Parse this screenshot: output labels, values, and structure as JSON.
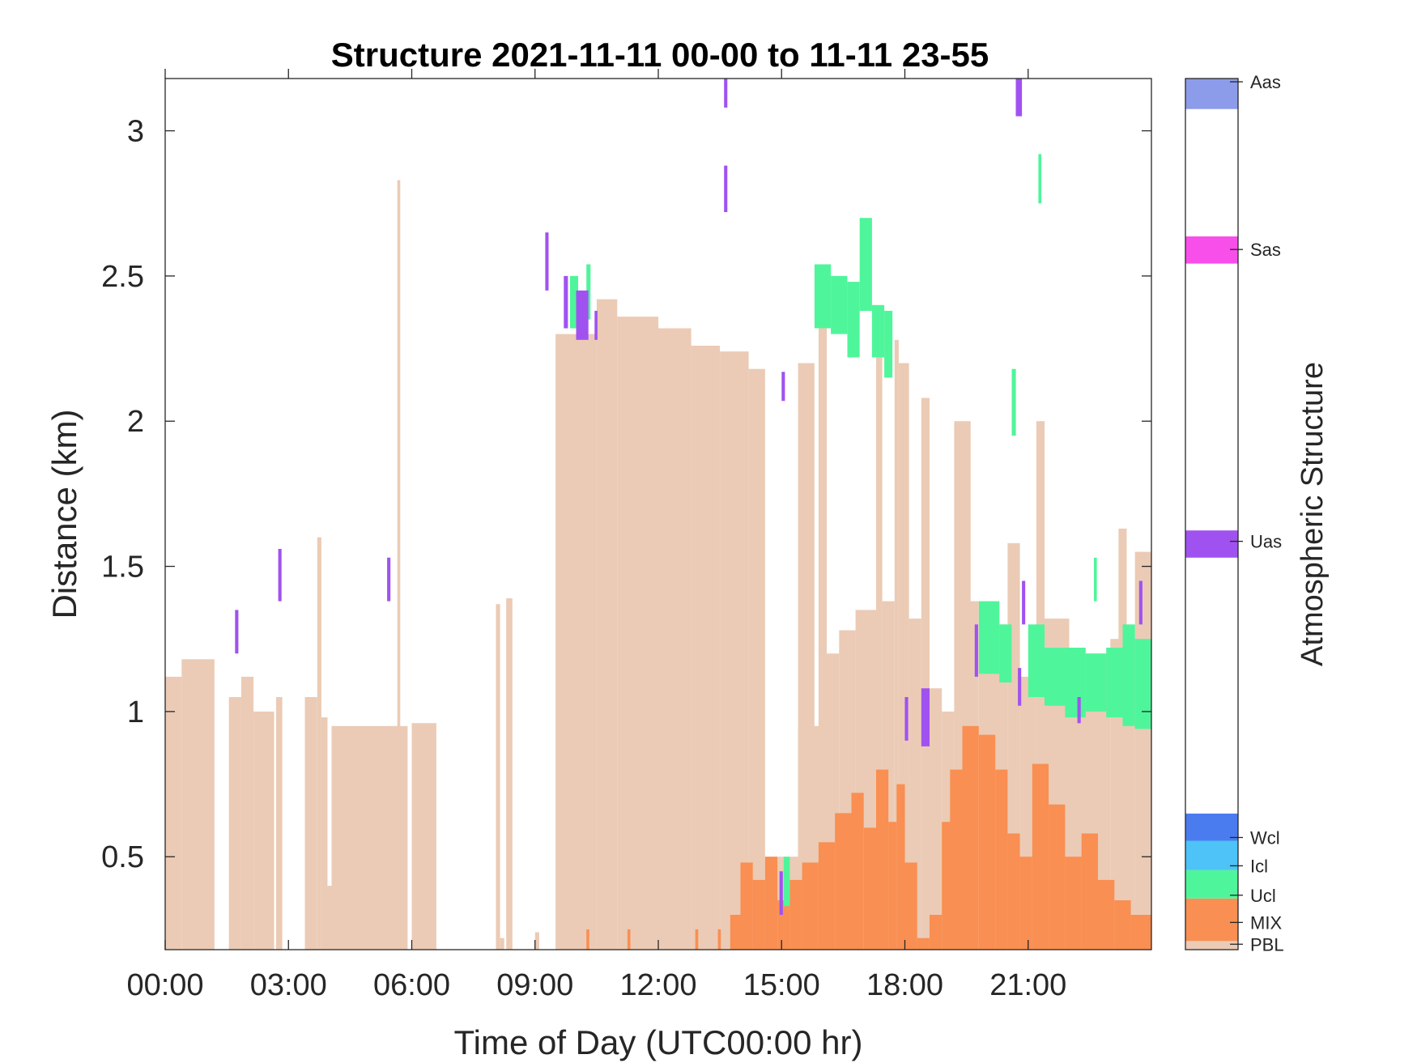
{
  "chart_data": {
    "type": "heatmap",
    "title": "Structure 2021-11-11 00-00 to 11-11 23-55",
    "xlabel": "Time of Day (UTC00:00 hr)",
    "ylabel": "Distance (km)",
    "xlim": [
      0,
      24
    ],
    "ylim": [
      0.18,
      3.18
    ],
    "xticks": [
      0,
      3,
      6,
      9,
      12,
      15,
      18,
      21
    ],
    "xtick_labels": [
      "00:00",
      "03:00",
      "06:00",
      "09:00",
      "12:00",
      "15:00",
      "18:00",
      "21:00"
    ],
    "yticks": [
      0.5,
      1,
      1.5,
      2,
      2.5,
      3
    ],
    "ytick_labels": [
      "0.5",
      "1",
      "1.5",
      "2",
      "2.5",
      "3"
    ],
    "colorbar": {
      "label": "Atmospheric Structure",
      "categories": [
        {
          "name": "PBL",
          "color": "#ebcbb5"
        },
        {
          "name": "MIX",
          "color": "#f98f52"
        },
        {
          "name": "Ucl",
          "color": "#4ff59a"
        },
        {
          "name": "Icl",
          "color": "#4dc3f7"
        },
        {
          "name": "Wcl",
          "color": "#4a7cf0"
        },
        {
          "name": "Uas",
          "color": "#a052f0"
        },
        {
          "name": "Sas",
          "color": "#f94fea"
        },
        {
          "name": "Aas",
          "color": "#8c9ceb"
        }
      ]
    },
    "grid": false,
    "series": [
      {
        "name": "PBL",
        "blocks": [
          [
            0.0,
            0.4,
            0.18,
            1.12
          ],
          [
            0.4,
            1.2,
            0.18,
            1.18
          ],
          [
            1.55,
            1.85,
            0.18,
            1.05
          ],
          [
            1.85,
            2.15,
            0.18,
            1.12
          ],
          [
            2.15,
            2.65,
            0.18,
            1.0
          ],
          [
            2.7,
            2.85,
            0.18,
            1.05
          ],
          [
            3.4,
            3.7,
            0.18,
            1.05
          ],
          [
            3.7,
            3.8,
            0.18,
            1.6
          ],
          [
            3.8,
            3.95,
            0.18,
            0.98
          ],
          [
            3.95,
            4.05,
            0.18,
            0.4
          ],
          [
            4.05,
            5.9,
            0.18,
            0.95
          ],
          [
            5.65,
            5.72,
            0.18,
            2.83
          ],
          [
            6.0,
            6.6,
            0.18,
            0.96
          ],
          [
            8.05,
            8.15,
            0.18,
            1.37
          ],
          [
            8.15,
            8.25,
            0.18,
            0.22
          ],
          [
            8.3,
            8.45,
            0.18,
            1.39
          ],
          [
            9.0,
            9.1,
            0.18,
            0.24
          ],
          [
            9.5,
            10.5,
            0.18,
            2.3
          ],
          [
            10.5,
            11.0,
            0.18,
            2.42
          ],
          [
            11.0,
            12.0,
            0.18,
            2.36
          ],
          [
            12.0,
            12.8,
            0.18,
            2.32
          ],
          [
            12.8,
            13.5,
            0.18,
            2.26
          ],
          [
            13.5,
            14.2,
            0.18,
            2.24
          ],
          [
            14.2,
            14.6,
            0.18,
            2.18
          ],
          [
            14.6,
            15.4,
            0.18,
            0.5
          ],
          [
            15.4,
            15.8,
            0.18,
            2.2
          ],
          [
            15.4,
            15.9,
            0.18,
            0.95
          ],
          [
            15.9,
            16.1,
            0.18,
            2.48
          ],
          [
            16.0,
            16.4,
            0.18,
            1.2
          ],
          [
            16.4,
            16.8,
            0.18,
            1.28
          ],
          [
            16.8,
            17.3,
            0.18,
            1.35
          ],
          [
            17.3,
            17.45,
            0.18,
            2.25
          ],
          [
            17.45,
            17.75,
            0.18,
            1.38
          ],
          [
            17.75,
            17.85,
            0.18,
            2.28
          ],
          [
            17.85,
            18.1,
            0.18,
            2.2
          ],
          [
            18.1,
            18.4,
            0.18,
            1.32
          ],
          [
            18.4,
            18.6,
            0.18,
            2.08
          ],
          [
            18.6,
            18.9,
            0.18,
            1.08
          ],
          [
            18.9,
            19.2,
            0.18,
            1.0
          ],
          [
            19.2,
            19.6,
            0.18,
            2.0
          ],
          [
            19.5,
            19.8,
            0.18,
            1.38
          ],
          [
            19.8,
            20.5,
            0.18,
            1.3
          ],
          [
            20.5,
            20.8,
            0.18,
            1.58
          ],
          [
            20.8,
            21.2,
            0.18,
            1.12
          ],
          [
            21.2,
            21.4,
            0.18,
            2.0
          ],
          [
            21.4,
            22.0,
            0.18,
            1.32
          ],
          [
            22.0,
            23.0,
            0.18,
            1.2
          ],
          [
            23.0,
            23.6,
            0.18,
            1.25
          ],
          [
            23.2,
            23.4,
            0.18,
            1.63
          ],
          [
            23.6,
            24.0,
            0.18,
            1.55
          ]
        ]
      },
      {
        "name": "MIX",
        "blocks": [
          [
            10.25,
            10.32,
            0.18,
            0.25
          ],
          [
            11.25,
            11.32,
            0.18,
            0.25
          ],
          [
            12.9,
            12.97,
            0.18,
            0.25
          ],
          [
            13.45,
            13.52,
            0.18,
            0.25
          ],
          [
            13.75,
            14.0,
            0.18,
            0.3
          ],
          [
            14.0,
            14.3,
            0.18,
            0.48
          ],
          [
            14.3,
            14.6,
            0.18,
            0.42
          ],
          [
            14.6,
            14.9,
            0.18,
            0.5
          ],
          [
            14.9,
            15.2,
            0.18,
            0.35
          ],
          [
            15.2,
            15.5,
            0.18,
            0.42
          ],
          [
            15.5,
            15.9,
            0.18,
            0.48
          ],
          [
            15.9,
            16.3,
            0.18,
            0.55
          ],
          [
            16.3,
            16.7,
            0.18,
            0.65
          ],
          [
            16.7,
            17.0,
            0.18,
            0.72
          ],
          [
            17.0,
            17.3,
            0.18,
            0.6
          ],
          [
            17.3,
            17.6,
            0.18,
            0.8
          ],
          [
            17.6,
            17.8,
            0.18,
            0.62
          ],
          [
            17.8,
            18.0,
            0.18,
            0.75
          ],
          [
            18.0,
            18.3,
            0.18,
            0.48
          ],
          [
            18.3,
            18.6,
            0.18,
            0.22
          ],
          [
            18.6,
            18.9,
            0.18,
            0.3
          ],
          [
            18.9,
            19.1,
            0.18,
            0.62
          ],
          [
            19.1,
            19.4,
            0.18,
            0.8
          ],
          [
            19.4,
            19.8,
            0.18,
            0.95
          ],
          [
            19.8,
            20.2,
            0.18,
            0.92
          ],
          [
            20.2,
            20.5,
            0.18,
            0.8
          ],
          [
            20.5,
            20.8,
            0.18,
            0.58
          ],
          [
            20.8,
            21.1,
            0.18,
            0.5
          ],
          [
            21.1,
            21.5,
            0.18,
            0.82
          ],
          [
            21.5,
            21.9,
            0.18,
            0.68
          ],
          [
            21.9,
            22.3,
            0.18,
            0.5
          ],
          [
            22.3,
            22.7,
            0.18,
            0.58
          ],
          [
            22.7,
            23.1,
            0.18,
            0.42
          ],
          [
            23.1,
            23.5,
            0.18,
            0.35
          ],
          [
            23.5,
            24.0,
            0.18,
            0.3
          ]
        ]
      },
      {
        "name": "Ucl",
        "blocks": [
          [
            9.85,
            10.05,
            2.32,
            2.5
          ],
          [
            10.25,
            10.35,
            2.35,
            2.54
          ],
          [
            15.05,
            15.2,
            0.33,
            0.5
          ],
          [
            15.8,
            16.2,
            2.32,
            2.54
          ],
          [
            16.2,
            16.6,
            2.3,
            2.5
          ],
          [
            16.6,
            16.9,
            2.22,
            2.48
          ],
          [
            16.9,
            17.2,
            2.38,
            2.7
          ],
          [
            17.2,
            17.5,
            2.22,
            2.4
          ],
          [
            17.5,
            17.7,
            2.15,
            2.38
          ],
          [
            19.8,
            20.3,
            1.13,
            1.38
          ],
          [
            20.3,
            20.6,
            1.1,
            1.3
          ],
          [
            20.6,
            20.7,
            1.95,
            2.18
          ],
          [
            21.0,
            21.4,
            1.05,
            1.3
          ],
          [
            21.4,
            21.9,
            1.02,
            1.22
          ],
          [
            21.9,
            22.4,
            0.98,
            1.22
          ],
          [
            22.4,
            22.9,
            1.0,
            1.2
          ],
          [
            22.9,
            23.3,
            0.98,
            1.22
          ],
          [
            23.3,
            23.6,
            0.95,
            1.3
          ],
          [
            23.6,
            24.0,
            0.94,
            1.25
          ],
          [
            21.25,
            21.32,
            2.75,
            2.92
          ],
          [
            22.6,
            22.67,
            1.38,
            1.53
          ]
        ]
      },
      {
        "name": "Uas",
        "blocks": [
          [
            1.7,
            1.78,
            1.2,
            1.35
          ],
          [
            2.75,
            2.83,
            1.38,
            1.56
          ],
          [
            5.4,
            5.48,
            1.38,
            1.53
          ],
          [
            9.25,
            9.33,
            2.45,
            2.65
          ],
          [
            9.7,
            9.8,
            2.32,
            2.5
          ],
          [
            10.0,
            10.3,
            2.28,
            2.45
          ],
          [
            10.45,
            10.52,
            2.28,
            2.38
          ],
          [
            13.6,
            13.68,
            3.08,
            3.18
          ],
          [
            13.6,
            13.68,
            2.72,
            2.88
          ],
          [
            15.0,
            15.08,
            2.07,
            2.17
          ],
          [
            14.95,
            15.03,
            0.3,
            0.45
          ],
          [
            18.0,
            18.08,
            0.9,
            1.05
          ],
          [
            18.4,
            18.6,
            0.88,
            1.08
          ],
          [
            19.7,
            19.78,
            1.12,
            1.3
          ],
          [
            20.7,
            20.85,
            3.05,
            3.18
          ],
          [
            20.85,
            20.93,
            1.3,
            1.45
          ],
          [
            20.75,
            20.83,
            1.02,
            1.15
          ],
          [
            23.7,
            23.78,
            1.3,
            1.45
          ],
          [
            22.2,
            22.28,
            0.96,
            1.05
          ]
        ]
      }
    ]
  }
}
